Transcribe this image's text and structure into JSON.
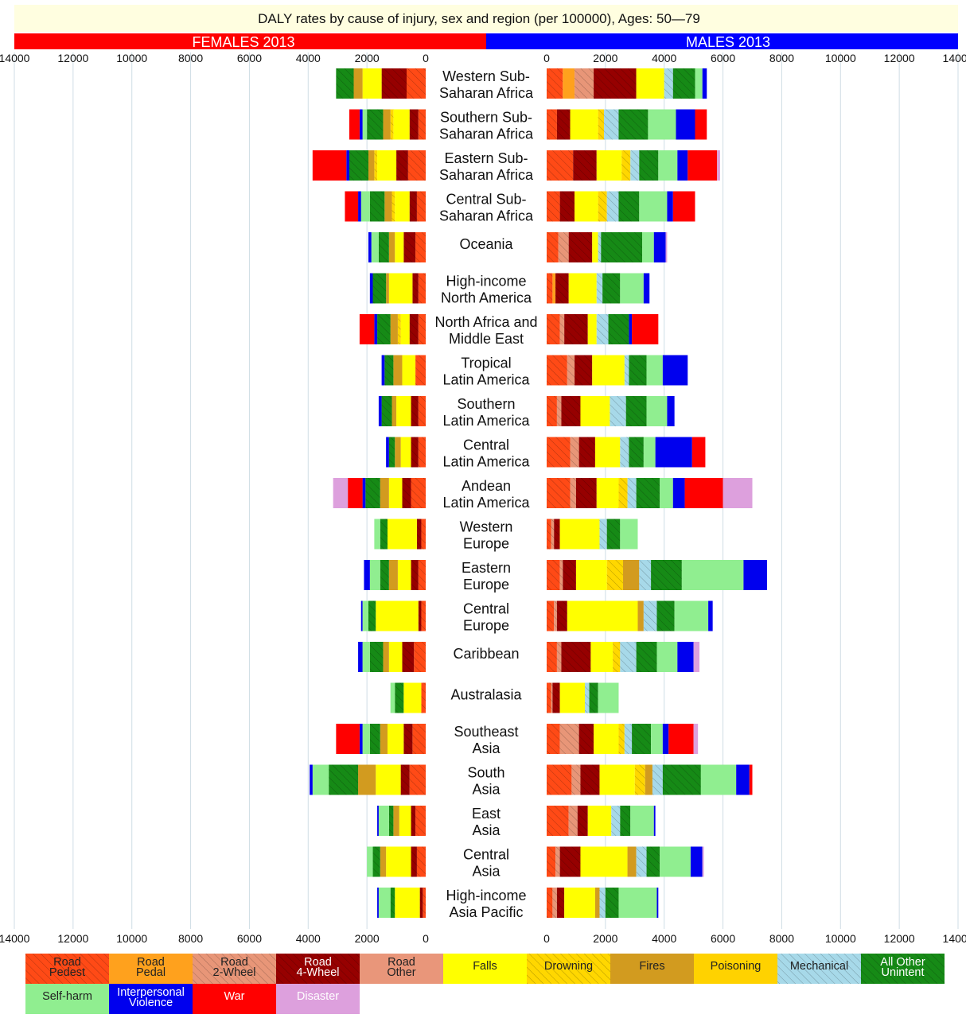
{
  "chart_data": {
    "type": "bar",
    "orientation": "horizontal-butterfly",
    "stacked": true,
    "title": "DALY rates by cause of injury, sex and region (per 100000), Ages: 50—79",
    "panels": [
      {
        "label": "FEMALES 2013",
        "side": "left",
        "color": "#ff0000"
      },
      {
        "label": "MALES 2013",
        "side": "right",
        "color": "#0000ff"
      }
    ],
    "xlim": [
      0,
      14000
    ],
    "xticks": [
      "14000",
      "12000",
      "10000",
      "8000",
      "6000",
      "4000",
      "2000",
      "0",
      "0",
      "2000",
      "4000",
      "6000",
      "8000",
      "10000",
      "12000",
      "14000"
    ],
    "grid": true,
    "legend_position": "bottom",
    "causes": [
      {
        "label": "Road\nPedest",
        "color": "#ff4a16",
        "hatch": true,
        "dark_text": true
      },
      {
        "label": "Road\nPedal",
        "color": "#ffa11d",
        "hatch": false,
        "dark_text": true
      },
      {
        "label": "Road\n2-Wheel",
        "color": "#e89678",
        "hatch": true,
        "dark_text": true
      },
      {
        "label": "Road\n4-Wheel",
        "color": "#960000",
        "hatch": true,
        "dark_text": false
      },
      {
        "label": "Road\nOther",
        "color": "#e9967a",
        "hatch": false,
        "dark_text": true
      },
      {
        "label": "Falls",
        "color": "#ffff00",
        "hatch": false,
        "dark_text": true
      },
      {
        "label": "Drowning",
        "color": "#ffd700",
        "hatch": true,
        "dark_text": true
      },
      {
        "label": "Fires",
        "color": "#d29b1f",
        "hatch": false,
        "dark_text": true
      },
      {
        "label": "Poisoning",
        "color": "#ffd200",
        "hatch": false,
        "dark_text": true
      },
      {
        "label": "Mechanical",
        "color": "#a7d9e9",
        "hatch": true,
        "dark_text": true
      },
      {
        "label": "All Other\nUnintent",
        "color": "#168a16",
        "hatch": true,
        "dark_text": false
      },
      {
        "label": "Self-harm",
        "color": "#90ee90",
        "hatch": false,
        "dark_text": true
      },
      {
        "label": "Interpersonal\nViolence",
        "color": "#0000ee",
        "hatch": false,
        "dark_text": false
      },
      {
        "label": "War",
        "color": "#ff0000",
        "hatch": false,
        "dark_text": false
      },
      {
        "label": "Disaster",
        "color": "#dda0dd",
        "hatch": false,
        "dark_text": false
      }
    ],
    "regions": [
      {
        "name": "Western Sub-\nSaharan Africa",
        "female": [
          650,
          0,
          0,
          850,
          0,
          650,
          0,
          300,
          0,
          0,
          600,
          0,
          0,
          0,
          0
        ],
        "male": [
          550,
          400,
          650,
          1450,
          0,
          950,
          0,
          0,
          0,
          300,
          750,
          250,
          150,
          0,
          0
        ]
      },
      {
        "name": "Southern Sub-\nSaharan Africa",
        "female": [
          250,
          0,
          0,
          300,
          0,
          550,
          100,
          250,
          0,
          0,
          550,
          150,
          100,
          350,
          0
        ],
        "male": [
          350,
          0,
          0,
          450,
          0,
          950,
          200,
          0,
          0,
          500,
          1000,
          950,
          650,
          400,
          0
        ]
      },
      {
        "name": "Eastern Sub-\nSaharan Africa",
        "female": [
          600,
          0,
          0,
          400,
          0,
          650,
          100,
          200,
          0,
          0,
          650,
          0,
          100,
          1150,
          0
        ],
        "male": [
          900,
          0,
          0,
          800,
          0,
          850,
          300,
          0,
          0,
          300,
          650,
          650,
          350,
          1000,
          100
        ]
      },
      {
        "name": "Central Sub-\nSaharan Africa",
        "female": [
          300,
          0,
          0,
          250,
          0,
          500,
          100,
          250,
          0,
          0,
          500,
          300,
          100,
          450,
          0
        ],
        "male": [
          450,
          0,
          0,
          500,
          0,
          800,
          300,
          0,
          0,
          400,
          700,
          950,
          200,
          750,
          0
        ]
      },
      {
        "name": "Oceania",
        "female": [
          350,
          0,
          0,
          400,
          0,
          300,
          0,
          200,
          0,
          0,
          350,
          250,
          100,
          0,
          0
        ],
        "male": [
          400,
          0,
          350,
          800,
          0,
          200,
          0,
          0,
          0,
          100,
          1400,
          400,
          400,
          0,
          50
        ]
      },
      {
        "name": "High-income\nNorth America",
        "female": [
          250,
          0,
          0,
          200,
          0,
          800,
          0,
          100,
          0,
          0,
          450,
          0,
          100,
          0,
          0
        ],
        "male": [
          200,
          100,
          0,
          450,
          0,
          950,
          0,
          0,
          0,
          200,
          600,
          800,
          200,
          0,
          0
        ]
      },
      {
        "name": "North Africa and\nMiddle East",
        "female": [
          250,
          0,
          0,
          300,
          0,
          300,
          100,
          250,
          0,
          0,
          450,
          0,
          100,
          500,
          0
        ],
        "male": [
          450,
          0,
          150,
          800,
          0,
          300,
          0,
          0,
          0,
          400,
          700,
          0,
          100,
          900,
          0
        ]
      },
      {
        "name": "Tropical\nLatin America",
        "female": [
          350,
          0,
          0,
          0,
          0,
          450,
          0,
          300,
          0,
          0,
          300,
          0,
          100,
          0,
          0
        ],
        "male": [
          700,
          0,
          250,
          600,
          0,
          1100,
          0,
          0,
          0,
          150,
          600,
          550,
          850,
          0,
          0
        ]
      },
      {
        "name": "Southern\nLatin America",
        "female": [
          250,
          0,
          0,
          250,
          0,
          500,
          0,
          150,
          0,
          0,
          350,
          0,
          100,
          0,
          0
        ],
        "male": [
          350,
          0,
          150,
          650,
          0,
          1000,
          0,
          0,
          0,
          550,
          700,
          700,
          250,
          0,
          0
        ]
      },
      {
        "name": "Central\nLatin America",
        "female": [
          250,
          0,
          0,
          250,
          0,
          350,
          0,
          200,
          0,
          0,
          200,
          0,
          100,
          0,
          0
        ],
        "male": [
          800,
          0,
          300,
          550,
          0,
          850,
          0,
          0,
          0,
          300,
          500,
          400,
          1250,
          450,
          0
        ]
      },
      {
        "name": "Andean\nLatin America",
        "female": [
          500,
          0,
          0,
          300,
          0,
          450,
          0,
          300,
          0,
          0,
          500,
          0,
          100,
          500,
          500
        ],
        "male": [
          800,
          0,
          200,
          700,
          0,
          750,
          300,
          0,
          0,
          300,
          800,
          450,
          400,
          1300,
          1000
        ]
      },
      {
        "name": "Western\nEurope",
        "female": [
          150,
          0,
          0,
          150,
          0,
          1000,
          0,
          0,
          0,
          0,
          250,
          200,
          0,
          0,
          0
        ],
        "male": [
          150,
          0,
          100,
          200,
          0,
          1350,
          0,
          0,
          0,
          250,
          450,
          600,
          0,
          0,
          0
        ]
      },
      {
        "name": "Eastern\nEurope",
        "female": [
          250,
          0,
          0,
          250,
          0,
          450,
          0,
          300,
          0,
          0,
          300,
          350,
          200,
          0,
          0
        ],
        "male": [
          450,
          0,
          100,
          450,
          0,
          1050,
          550,
          550,
          0,
          400,
          1050,
          2100,
          800,
          0,
          0
        ]
      },
      {
        "name": "Central\nEurope",
        "female": [
          150,
          0,
          0,
          100,
          0,
          1450,
          0,
          0,
          0,
          0,
          250,
          200,
          50,
          0,
          0
        ],
        "male": [
          250,
          0,
          100,
          350,
          0,
          2400,
          0,
          200,
          0,
          450,
          600,
          1150,
          150,
          0,
          0
        ]
      },
      {
        "name": "Caribbean",
        "female": [
          400,
          0,
          0,
          400,
          0,
          450,
          0,
          200,
          0,
          0,
          450,
          250,
          150,
          0,
          0
        ],
        "male": [
          350,
          0,
          150,
          1000,
          0,
          750,
          250,
          0,
          0,
          550,
          700,
          700,
          550,
          0,
          200
        ]
      },
      {
        "name": "Australasia",
        "female": [
          150,
          0,
          0,
          0,
          0,
          600,
          0,
          0,
          0,
          0,
          300,
          150,
          0,
          0,
          0
        ],
        "male": [
          150,
          0,
          50,
          250,
          0,
          850,
          0,
          0,
          0,
          150,
          300,
          700,
          0,
          0,
          0
        ]
      },
      {
        "name": "Southeast\nAsia",
        "female": [
          450,
          0,
          0,
          300,
          0,
          550,
          0,
          250,
          0,
          0,
          350,
          250,
          100,
          800,
          0
        ],
        "male": [
          450,
          0,
          650,
          500,
          0,
          850,
          200,
          0,
          0,
          250,
          650,
          400,
          200,
          850,
          150
        ]
      },
      {
        "name": "South\nAsia",
        "female": [
          550,
          0,
          0,
          300,
          0,
          850,
          0,
          600,
          0,
          0,
          1000,
          550,
          100,
          0,
          0
        ],
        "male": [
          850,
          0,
          300,
          650,
          0,
          1200,
          350,
          250,
          0,
          350,
          1300,
          1200,
          450,
          100,
          0
        ]
      },
      {
        "name": "East\nAsia",
        "female": [
          350,
          0,
          0,
          150,
          0,
          400,
          0,
          200,
          0,
          0,
          150,
          350,
          50,
          0,
          0
        ],
        "male": [
          750,
          0,
          300,
          350,
          0,
          800,
          0,
          0,
          0,
          300,
          350,
          800,
          50,
          0,
          0
        ]
      },
      {
        "name": "Central\nAsia",
        "female": [
          300,
          0,
          0,
          200,
          0,
          850,
          0,
          200,
          0,
          0,
          250,
          200,
          0,
          0,
          0
        ],
        "male": [
          300,
          0,
          150,
          700,
          0,
          1600,
          0,
          300,
          0,
          350,
          450,
          1050,
          400,
          0,
          50
        ]
      },
      {
        "name": "High-income\nAsia Pacific",
        "female": [
          100,
          0,
          0,
          100,
          0,
          850,
          0,
          0,
          0,
          0,
          150,
          400,
          50,
          0,
          0
        ],
        "male": [
          200,
          0,
          150,
          250,
          0,
          1050,
          0,
          150,
          0,
          200,
          450,
          1300,
          50,
          0,
          0
        ]
      }
    ]
  }
}
